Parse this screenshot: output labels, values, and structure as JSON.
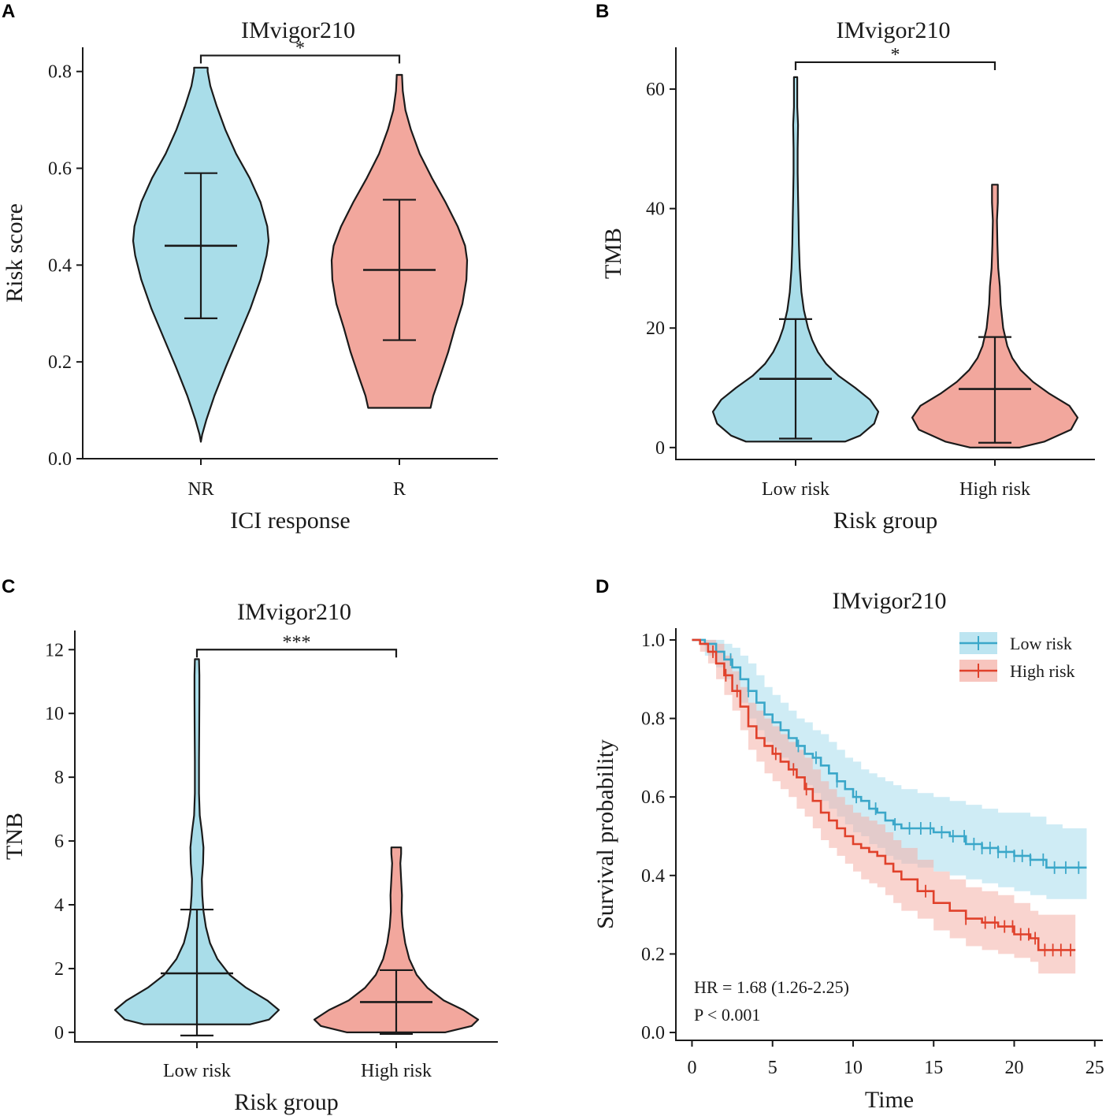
{
  "colors": {
    "blue_fill": "#a9dde9",
    "red_fill": "#f2a79d",
    "blue_line": "#3aa7c9",
    "red_line": "#e0412b",
    "blue_band": "#a7dcec",
    "red_band": "#f4b1a8",
    "axis": "#1a1a1a"
  },
  "chart_data": [
    {
      "panel": "A",
      "type": "violin",
      "title": "IMvigor210",
      "xlabel": "ICI response",
      "ylabel": "Risk score",
      "categories": [
        "NR",
        "R"
      ],
      "ylim": [
        0.0,
        0.85
      ],
      "yticks": [
        0.0,
        0.2,
        0.4,
        0.6,
        0.8
      ],
      "ytick_labels": [
        "0.0",
        "0.2",
        "0.4",
        "0.6",
        "0.8"
      ],
      "significance": "*",
      "sig_y": 0.833,
      "groups": [
        {
          "name": "NR",
          "color_key": "blue_fill",
          "mean": 0.44,
          "lower": 0.29,
          "upper": 0.59,
          "profile": [
            [
              0.035,
              0.0
            ],
            [
              0.05,
              0.02
            ],
            [
              0.08,
              0.08
            ],
            [
              0.13,
              0.2
            ],
            [
              0.19,
              0.37
            ],
            [
              0.25,
              0.55
            ],
            [
              0.31,
              0.73
            ],
            [
              0.37,
              0.88
            ],
            [
              0.42,
              0.97
            ],
            [
              0.45,
              1.0
            ],
            [
              0.48,
              0.98
            ],
            [
              0.53,
              0.88
            ],
            [
              0.58,
              0.72
            ],
            [
              0.63,
              0.52
            ],
            [
              0.68,
              0.36
            ],
            [
              0.73,
              0.23
            ],
            [
              0.77,
              0.14
            ],
            [
              0.8,
              0.1
            ],
            [
              0.808,
              0.1
            ]
          ]
        },
        {
          "name": "R",
          "color_key": "red_fill",
          "mean": 0.39,
          "lower": 0.245,
          "upper": 0.535,
          "profile": [
            [
              0.105,
              0.46
            ],
            [
              0.13,
              0.5
            ],
            [
              0.17,
              0.6
            ],
            [
              0.22,
              0.72
            ],
            [
              0.27,
              0.82
            ],
            [
              0.32,
              0.93
            ],
            [
              0.37,
              0.99
            ],
            [
              0.41,
              1.0
            ],
            [
              0.44,
              0.97
            ],
            [
              0.48,
              0.86
            ],
            [
              0.53,
              0.68
            ],
            [
              0.58,
              0.48
            ],
            [
              0.63,
              0.3
            ],
            [
              0.68,
              0.17
            ],
            [
              0.72,
              0.09
            ],
            [
              0.76,
              0.05
            ],
            [
              0.79,
              0.04
            ],
            [
              0.793,
              0.04
            ]
          ]
        }
      ]
    },
    {
      "panel": "B",
      "type": "violin",
      "title": "IMvigor210",
      "xlabel": "Risk group",
      "ylabel": "TMB",
      "categories": [
        "Low risk",
        "High risk"
      ],
      "ylim": [
        -2,
        67
      ],
      "yticks": [
        0,
        20,
        40,
        60
      ],
      "ytick_labels": [
        "0",
        "20",
        "40",
        "60"
      ],
      "significance": "*",
      "sig_y": 64.5,
      "groups": [
        {
          "name": "Low risk",
          "color_key": "blue_fill",
          "mean": 11.5,
          "lower": 1.5,
          "upper": 21.5,
          "profile": [
            [
              1,
              0.6
            ],
            [
              2,
              0.78
            ],
            [
              4,
              0.95
            ],
            [
              6,
              1.0
            ],
            [
              8,
              0.9
            ],
            [
              10,
              0.72
            ],
            [
              12,
              0.52
            ],
            [
              14,
              0.37
            ],
            [
              16,
              0.27
            ],
            [
              18,
              0.2
            ],
            [
              20,
              0.15
            ],
            [
              23,
              0.1
            ],
            [
              26,
              0.07
            ],
            [
              30,
              0.05
            ],
            [
              34,
              0.04
            ],
            [
              38,
              0.035
            ],
            [
              42,
              0.03
            ],
            [
              46,
              0.025
            ],
            [
              50,
              0.025
            ],
            [
              54,
              0.03
            ],
            [
              57,
              0.02
            ],
            [
              60,
              0.02
            ],
            [
              62,
              0.02
            ]
          ]
        },
        {
          "name": "High risk",
          "color_key": "red_fill",
          "mean": 9.8,
          "lower": 0.8,
          "upper": 18.5,
          "profile": [
            [
              0,
              0.3
            ],
            [
              1,
              0.6
            ],
            [
              3,
              0.92
            ],
            [
              5,
              1.0
            ],
            [
              7,
              0.9
            ],
            [
              9,
              0.66
            ],
            [
              11,
              0.46
            ],
            [
              13,
              0.31
            ],
            [
              15,
              0.21
            ],
            [
              17,
              0.15
            ],
            [
              20,
              0.1
            ],
            [
              24,
              0.07
            ],
            [
              27,
              0.06
            ],
            [
              30,
              0.04
            ],
            [
              34,
              0.03
            ],
            [
              38,
              0.025
            ],
            [
              41,
              0.035
            ],
            [
              43,
              0.035
            ],
            [
              44,
              0.035
            ]
          ]
        }
      ]
    },
    {
      "panel": "C",
      "type": "violin",
      "title": "IMvigor210",
      "xlabel": "Risk group",
      "ylabel": "TNB",
      "categories": [
        "Low risk",
        "High risk"
      ],
      "ylim": [
        -0.3,
        12.6
      ],
      "yticks": [
        0,
        2,
        4,
        6,
        8,
        10,
        12
      ],
      "ytick_labels": [
        "0",
        "2",
        "4",
        "6",
        "8",
        "10",
        "12"
      ],
      "significance": "***",
      "sig_y": 12.0,
      "groups": [
        {
          "name": "Low risk",
          "color_key": "blue_fill",
          "mean": 1.85,
          "lower": -0.1,
          "upper": 3.85,
          "profile": [
            [
              0.25,
              0.65
            ],
            [
              0.4,
              0.88
            ],
            [
              0.7,
              1.0
            ],
            [
              1.0,
              0.86
            ],
            [
              1.4,
              0.6
            ],
            [
              1.8,
              0.4
            ],
            [
              2.3,
              0.25
            ],
            [
              2.8,
              0.16
            ],
            [
              3.3,
              0.11
            ],
            [
              3.8,
              0.08
            ],
            [
              4.3,
              0.065
            ],
            [
              4.8,
              0.06
            ],
            [
              5.3,
              0.075
            ],
            [
              5.8,
              0.08
            ],
            [
              6.3,
              0.06
            ],
            [
              6.8,
              0.035
            ],
            [
              7.5,
              0.025
            ],
            [
              8.5,
              0.025
            ],
            [
              9.5,
              0.028
            ],
            [
              10.5,
              0.03
            ],
            [
              11.2,
              0.03
            ],
            [
              11.7,
              0.025
            ]
          ]
        },
        {
          "name": "High risk",
          "color_key": "red_fill",
          "mean": 0.95,
          "lower": -0.05,
          "upper": 1.95,
          "profile": [
            [
              0.0,
              0.6
            ],
            [
              0.2,
              0.92
            ],
            [
              0.4,
              1.0
            ],
            [
              0.7,
              0.82
            ],
            [
              1.0,
              0.58
            ],
            [
              1.4,
              0.38
            ],
            [
              1.8,
              0.25
            ],
            [
              2.3,
              0.16
            ],
            [
              2.8,
              0.11
            ],
            [
              3.3,
              0.08
            ],
            [
              3.8,
              0.065
            ],
            [
              4.3,
              0.07
            ],
            [
              4.8,
              0.06
            ],
            [
              5.3,
              0.05
            ],
            [
              5.6,
              0.06
            ],
            [
              5.8,
              0.06
            ]
          ]
        }
      ]
    },
    {
      "panel": "D",
      "type": "line",
      "subtype": "kaplan-meier",
      "title": "IMvigor210",
      "xlabel": "Time",
      "ylabel": "Survival probability",
      "xlim": [
        -1,
        25.5
      ],
      "ylim": [
        -0.02,
        1.03
      ],
      "xticks": [
        0,
        5,
        10,
        15,
        20,
        25
      ],
      "xtick_labels": [
        "0",
        "5",
        "10",
        "15",
        "20",
        "25"
      ],
      "yticks": [
        0.0,
        0.2,
        0.4,
        0.6,
        0.8,
        1.0
      ],
      "ytick_labels": [
        "0.0",
        "0.2",
        "0.4",
        "0.6",
        "0.8",
        "1.0"
      ],
      "legend": [
        "Low risk",
        "High risk"
      ],
      "legend_position": "top-right",
      "annotations": [
        "HR = 1.68 (1.26-2.25)",
        "P < 0.001"
      ],
      "series": [
        {
          "name": "Low risk",
          "color_key": "blue_line",
          "band_key": "blue_band",
          "x": [
            0,
            0.8,
            1.5,
            2.0,
            2.5,
            3.0,
            3.5,
            4.0,
            4.5,
            5.0,
            5.5,
            6.0,
            6.5,
            7.0,
            7.5,
            8.0,
            8.5,
            9.0,
            9.5,
            10.0,
            10.5,
            11.0,
            11.5,
            12.0,
            12.5,
            13.0,
            14.0,
            15.0,
            16.0,
            17.0,
            18.0,
            19.0,
            20.0,
            21.0,
            22.0,
            23.0,
            24.5
          ],
          "y": [
            1.0,
            0.99,
            0.97,
            0.95,
            0.93,
            0.9,
            0.87,
            0.84,
            0.81,
            0.79,
            0.77,
            0.75,
            0.73,
            0.71,
            0.7,
            0.68,
            0.66,
            0.64,
            0.62,
            0.6,
            0.59,
            0.57,
            0.56,
            0.54,
            0.53,
            0.52,
            0.52,
            0.51,
            0.5,
            0.48,
            0.47,
            0.46,
            0.45,
            0.44,
            0.42,
            0.42,
            0.42
          ],
          "lower": [
            1.0,
            0.96,
            0.93,
            0.9,
            0.87,
            0.84,
            0.8,
            0.77,
            0.74,
            0.72,
            0.7,
            0.67,
            0.65,
            0.63,
            0.61,
            0.59,
            0.57,
            0.55,
            0.53,
            0.51,
            0.5,
            0.48,
            0.47,
            0.45,
            0.44,
            0.43,
            0.42,
            0.41,
            0.4,
            0.39,
            0.38,
            0.37,
            0.36,
            0.35,
            0.34,
            0.34,
            0.34
          ],
          "upper": [
            1.0,
            1.0,
            1.0,
            0.99,
            0.98,
            0.96,
            0.94,
            0.91,
            0.88,
            0.86,
            0.84,
            0.82,
            0.8,
            0.79,
            0.77,
            0.76,
            0.74,
            0.72,
            0.7,
            0.69,
            0.67,
            0.66,
            0.65,
            0.64,
            0.63,
            0.62,
            0.61,
            0.6,
            0.59,
            0.58,
            0.57,
            0.56,
            0.56,
            0.55,
            0.53,
            0.52,
            0.52
          ],
          "censor_x": [
            2.4,
            3.5,
            6.6,
            7.7,
            9.0,
            10.2,
            11.4,
            12.6,
            13.5,
            14.2,
            14.8,
            15.5,
            16.2,
            16.9,
            17.5,
            18.0,
            18.5,
            19.0,
            19.5,
            20.0,
            20.5,
            21.0,
            21.8,
            22.5,
            23.2,
            24.0
          ]
        },
        {
          "name": "High risk",
          "color_key": "red_line",
          "band_key": "red_band",
          "x": [
            0,
            0.5,
            1.0,
            1.5,
            2.0,
            2.5,
            3.0,
            3.5,
            4.0,
            4.5,
            5.0,
            5.5,
            6.0,
            6.5,
            7.0,
            7.5,
            8.0,
            8.5,
            9.0,
            9.5,
            10.0,
            10.5,
            11.0,
            11.5,
            12.0,
            12.5,
            13.0,
            14.0,
            15.0,
            16.0,
            17.0,
            18.0,
            19.0,
            20.0,
            21.0,
            21.5,
            22.5,
            23.8
          ],
          "y": [
            1.0,
            0.99,
            0.97,
            0.94,
            0.91,
            0.87,
            0.83,
            0.78,
            0.75,
            0.73,
            0.71,
            0.69,
            0.67,
            0.65,
            0.62,
            0.59,
            0.56,
            0.54,
            0.52,
            0.5,
            0.48,
            0.47,
            0.46,
            0.45,
            0.43,
            0.41,
            0.39,
            0.36,
            0.33,
            0.31,
            0.29,
            0.28,
            0.27,
            0.25,
            0.24,
            0.21,
            0.21,
            0.21
          ],
          "lower": [
            1.0,
            0.97,
            0.94,
            0.9,
            0.86,
            0.82,
            0.77,
            0.72,
            0.69,
            0.66,
            0.64,
            0.62,
            0.6,
            0.57,
            0.55,
            0.52,
            0.49,
            0.47,
            0.45,
            0.43,
            0.41,
            0.39,
            0.38,
            0.37,
            0.35,
            0.33,
            0.31,
            0.29,
            0.26,
            0.24,
            0.22,
            0.21,
            0.2,
            0.19,
            0.18,
            0.15,
            0.15,
            0.15
          ],
          "upper": [
            1.0,
            1.0,
            1.0,
            0.99,
            0.96,
            0.92,
            0.88,
            0.84,
            0.82,
            0.8,
            0.78,
            0.76,
            0.74,
            0.72,
            0.7,
            0.67,
            0.64,
            0.62,
            0.6,
            0.58,
            0.56,
            0.55,
            0.54,
            0.53,
            0.51,
            0.49,
            0.47,
            0.44,
            0.41,
            0.39,
            0.37,
            0.36,
            0.35,
            0.33,
            0.31,
            0.3,
            0.3,
            0.3
          ],
          "censor_x": [
            1.3,
            2.1,
            2.8,
            5.2,
            6.3,
            7.1,
            14.5,
            17.0,
            18.2,
            18.8,
            19.4,
            19.9,
            20.4,
            20.9,
            21.3,
            21.9,
            22.4,
            22.9,
            23.5
          ]
        }
      ]
    }
  ]
}
